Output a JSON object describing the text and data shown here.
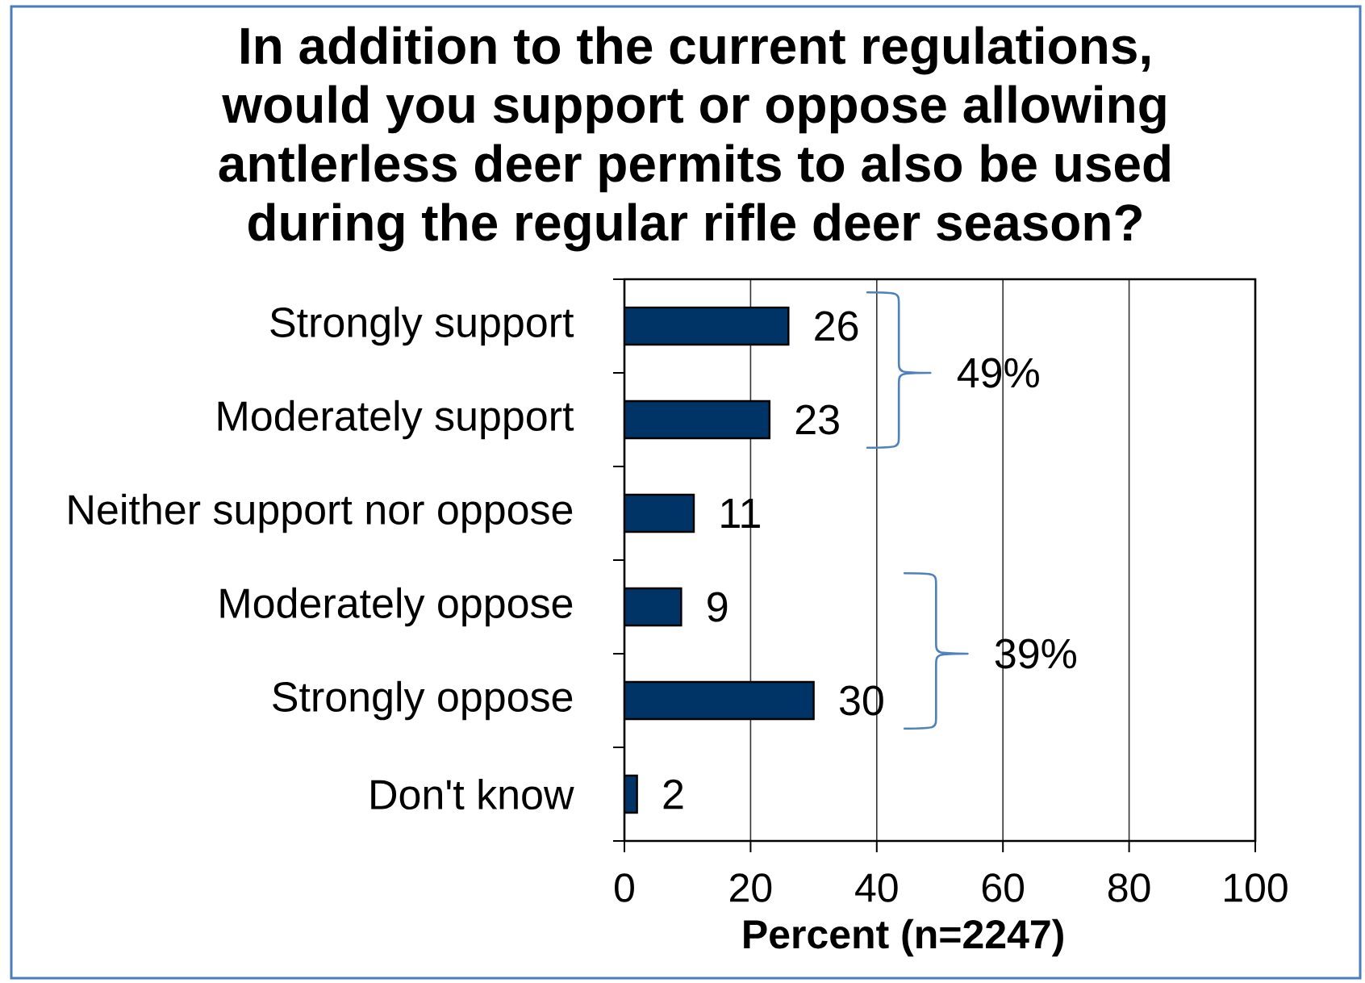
{
  "chart_data": {
    "type": "bar",
    "orientation": "horizontal",
    "title": "In addition to the current regulations, would you support or oppose allowing antlerless deer permits to also be used during the regular rifle deer season?",
    "xlabel": "Percent (n=2247)",
    "categories": [
      "Strongly support",
      "Moderately support",
      "Neither support nor oppose",
      "Moderately oppose",
      "Strongly oppose",
      "Don't know"
    ],
    "values": [
      26,
      23,
      11,
      9,
      30,
      2
    ],
    "color": "#003366",
    "xlim": [
      0,
      100
    ],
    "xticks": [
      0,
      20,
      40,
      60,
      80,
      100
    ],
    "grid": "x",
    "data_labels": true,
    "annotations": [
      "49%",
      "39%"
    ]
  }
}
